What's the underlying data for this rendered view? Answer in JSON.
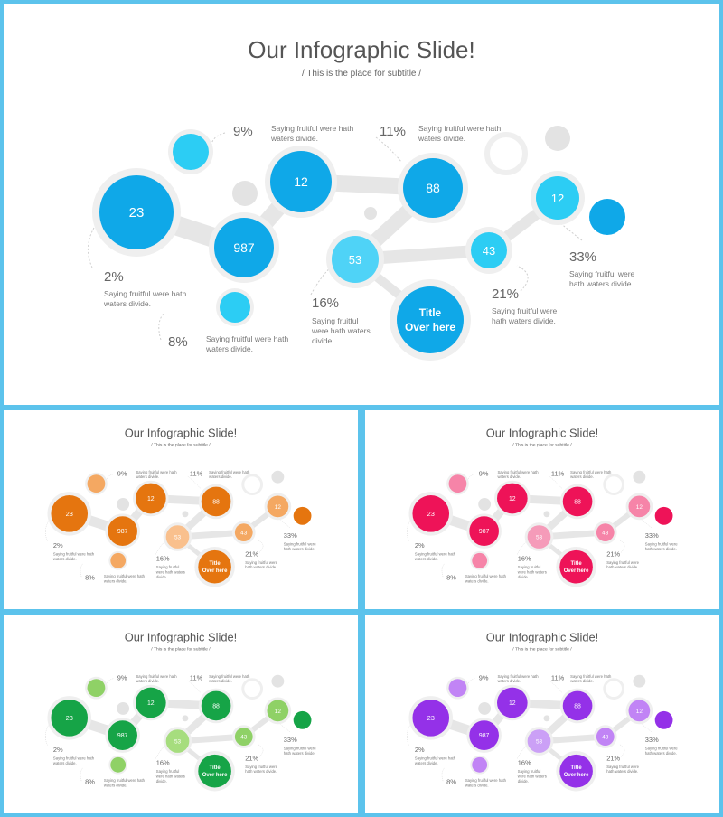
{
  "title": "Our Infographic Slide!",
  "subtitle": "/ This is the place for subtitle /",
  "node_values": [
    "23",
    "987",
    "12",
    "88",
    "53",
    "43",
    "12"
  ],
  "center_title": [
    "Title",
    "Over here"
  ],
  "percentages": [
    "9%",
    "11%",
    "33%",
    "2%",
    "8%",
    "16%",
    "21%"
  ],
  "descriptions": [
    [
      "Saying fruitful were hath",
      "waters divide."
    ],
    [
      "Saying fruitful were hath",
      "waters divide."
    ],
    [
      "Saying fruitful were",
      "hath waters divide."
    ],
    [
      "Saying fruitful were hath",
      "waters divide."
    ],
    [
      "Saying fruitful were hath",
      "waters divide."
    ],
    [
      "Saying fruitful",
      "were hath waters",
      "divide."
    ],
    [
      "Saying fruitful were",
      "hath waters divide."
    ]
  ],
  "themes": [
    {
      "name": "blue",
      "dark": "#0fa8e8",
      "light": "#2ccdf4",
      "pale": "#4fd3f7"
    },
    {
      "name": "orange",
      "dark": "#e5750f",
      "light": "#f4a862",
      "pale": "#f9c08d"
    },
    {
      "name": "pink",
      "dark": "#ee1358",
      "light": "#f684a8",
      "pale": "#f59bb9"
    },
    {
      "name": "green",
      "dark": "#16a447",
      "light": "#8fd166",
      "pale": "#a6dd7e"
    },
    {
      "name": "purple",
      "dark": "#9431e8",
      "light": "#c184f5",
      "pale": "#cba0f6"
    }
  ],
  "colors": {
    "connector": "#e6e6e6",
    "ring": "#efefef",
    "gray_dot": "#e3e3e3",
    "frame": "#5cc3ec"
  }
}
